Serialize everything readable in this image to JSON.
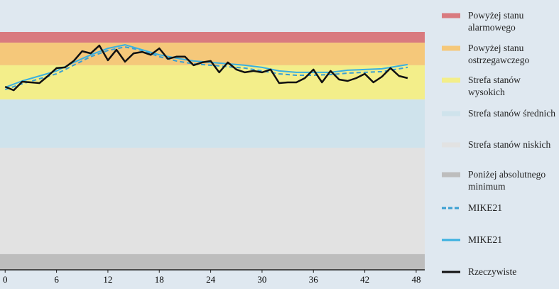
{
  "chart_data": {
    "type": "line",
    "x_ticks_note_free": null,
    "xlim": [
      -0.6,
      49
    ],
    "ylim": [
      0,
      100
    ],
    "xticks": [
      0,
      6,
      12,
      18,
      24,
      30,
      36,
      42,
      48
    ],
    "zones": [
      {
        "name": "Powyżej stanu alarmowego",
        "color": "#d97a7f",
        "from": 95.5,
        "to": 100
      },
      {
        "name": "Powyżej stanu ostrzegawczego",
        "color": "#f5c87a",
        "from": 86,
        "to": 95.5
      },
      {
        "name": "Strefa stanów wysokich",
        "color": "#f3ee8a",
        "from": 71.6,
        "to": 86
      },
      {
        "name": "Strefa stanów średnich",
        "color": "#cfe3ec",
        "from": 51.3,
        "to": 71.6
      },
      {
        "name": "Strefa stanów niskich",
        "color": "#e2e2e2",
        "from": 6.6,
        "to": 51.3
      },
      {
        "name": "Poniżej absolutnego minimum",
        "color": "#bdbdbd",
        "from": 0,
        "to": 6.6
      }
    ],
    "series": [
      {
        "name": "MIKE21",
        "color": "#3a9fd2",
        "dashed": true,
        "x": [
          0,
          2,
          4,
          6,
          8,
          10,
          12,
          14,
          16,
          18,
          20,
          22,
          24,
          26,
          28,
          30,
          32,
          34,
          36,
          38,
          40,
          42,
          44,
          46,
          47
        ],
        "values": [
          75.8,
          78.2,
          80.3,
          82.4,
          86.0,
          89.6,
          92.2,
          93.7,
          92.2,
          89.6,
          87.8,
          86.6,
          86.0,
          85.4,
          84.8,
          83.6,
          82.4,
          81.8,
          81.8,
          82.1,
          82.7,
          83.0,
          83.3,
          84.5,
          85.1
        ]
      },
      {
        "name": "MIKE21",
        "color": "#3ab0e0",
        "dashed": false,
        "x": [
          0,
          2,
          4,
          6,
          8,
          10,
          12,
          14,
          16,
          18,
          20,
          22,
          24,
          26,
          28,
          30,
          32,
          34,
          36,
          38,
          40,
          42,
          44,
          46,
          47
        ],
        "values": [
          76.7,
          79.4,
          81.5,
          83.6,
          87.2,
          90.4,
          93.1,
          94.6,
          92.5,
          90.4,
          89.0,
          87.8,
          87.2,
          86.6,
          86.0,
          85.1,
          83.6,
          83.0,
          83.0,
          83.0,
          83.9,
          84.2,
          84.5,
          85.7,
          86.3
        ]
      },
      {
        "name": "Rzeczywiste",
        "color": "#111111",
        "dashed": false,
        "x": [
          0,
          1,
          2,
          3,
          4,
          5,
          6,
          7,
          8,
          9,
          10,
          11,
          12,
          13,
          14,
          15,
          16,
          17,
          18,
          19,
          20,
          21,
          22,
          23,
          24,
          25,
          26,
          27,
          28,
          29,
          30,
          31,
          32,
          33,
          34,
          35,
          36,
          37,
          38,
          39,
          40,
          41,
          42,
          43,
          44,
          45,
          46,
          47
        ],
        "values": [
          77.0,
          75.5,
          79.1,
          78.8,
          78.5,
          81.5,
          84.8,
          85.1,
          87.8,
          91.9,
          91.0,
          94.3,
          88.1,
          92.5,
          87.5,
          91.0,
          91.6,
          90.4,
          93.1,
          88.7,
          89.6,
          89.6,
          86.0,
          87.2,
          87.8,
          83.0,
          87.2,
          84.2,
          83.0,
          83.6,
          83.0,
          84.2,
          78.5,
          78.8,
          78.8,
          80.6,
          84.2,
          78.8,
          83.6,
          80.0,
          79.4,
          80.6,
          82.4,
          78.8,
          81.2,
          84.8,
          81.5,
          80.6
        ]
      }
    ]
  }
}
